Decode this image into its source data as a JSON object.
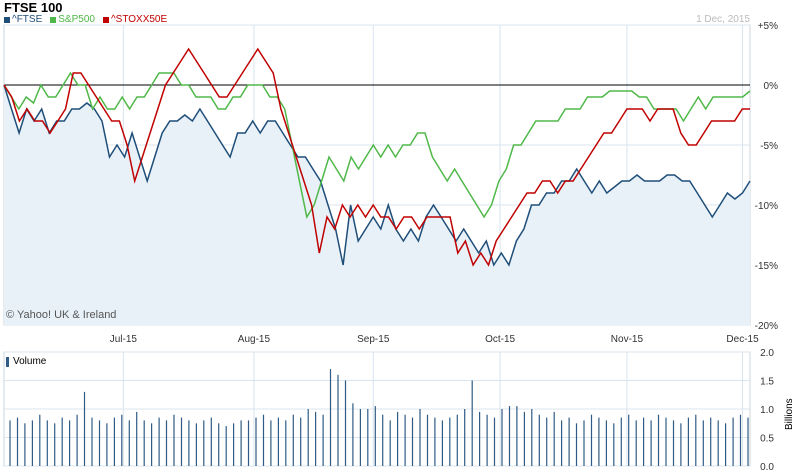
{
  "chart_title": "FTSE 100",
  "date_label": "1 Dec, 2015",
  "copyright": "© Yahoo! UK & Ireland",
  "colors": {
    "ftse": "#1f4e79",
    "sp500": "#4fb848",
    "stoxx": "#c00000",
    "volume": "#2f5b86",
    "area_fill": "#e8f1f8",
    "grid": "#d8e4ee"
  },
  "chart_data": [
    {
      "type": "line",
      "title": "FTSE 100",
      "x_ticks": [
        "Jul-15",
        "Aug-15",
        "Sep-15",
        "Oct-15",
        "Nov-15",
        "Dec-15"
      ],
      "y_ticks": [
        "+5%",
        "0%",
        "-5%",
        "-10%",
        "-15%",
        "-20%"
      ],
      "ylim": [
        -20,
        5
      ],
      "y_unit": "percent change",
      "series": [
        {
          "name": "^FTSE",
          "color": "#1f4e79",
          "fill": "area",
          "values": [
            0,
            -2,
            -4,
            -2,
            -3,
            -2,
            -4,
            -3,
            -3,
            -2,
            -2,
            -1.5,
            -2,
            -3,
            -6,
            -5,
            -6,
            -4,
            -6,
            -8,
            -6,
            -4,
            -3,
            -3,
            -2.5,
            -3,
            -2,
            -3,
            -4,
            -5,
            -6,
            -4,
            -4,
            -3,
            -4,
            -3,
            -3,
            -4,
            -5,
            -6,
            -6,
            -7,
            -8,
            -10,
            -12,
            -15,
            -10,
            -13,
            -12,
            -11,
            -12,
            -10,
            -12,
            -13,
            -12,
            -13,
            -11,
            -10,
            -11,
            -12,
            -13,
            -12,
            -13,
            -14,
            -13,
            -15,
            -14,
            -15,
            -13,
            -12,
            -10,
            -10,
            -9,
            -9,
            -8,
            -8,
            -7,
            -8,
            -9,
            -8,
            -9,
            -8.5,
            -8,
            -8,
            -7.5,
            -8,
            -8,
            -8,
            -7.5,
            -7.5,
            -8,
            -8,
            -9,
            -10,
            -11,
            -10,
            -9,
            -9.5,
            -9,
            -8
          ]
        },
        {
          "name": "S&P500",
          "color": "#4fb848",
          "fill": "none",
          "values": [
            0,
            -1,
            -2,
            -1,
            -1.5,
            0,
            -1,
            -1,
            0,
            1,
            0,
            0,
            -2,
            -1,
            -2,
            -2,
            -1,
            -2,
            -1,
            -1,
            0,
            1,
            1,
            1,
            0,
            0,
            -1,
            -1,
            -1,
            -2,
            -2,
            -1,
            -1,
            0,
            0,
            0,
            -1,
            -1,
            -2,
            -5,
            -8,
            -11,
            -10,
            -8,
            -6,
            -7,
            -8,
            -6,
            -7,
            -6,
            -5,
            -6,
            -5,
            -6,
            -5,
            -5,
            -4,
            -4,
            -6,
            -7,
            -8,
            -7,
            -8,
            -9,
            -10,
            -11,
            -10,
            -8,
            -7,
            -5,
            -5,
            -4,
            -3,
            -3,
            -3,
            -3,
            -2,
            -2,
            -2,
            -1,
            -1,
            -1,
            -0.5,
            -0.5,
            -0.5,
            -0.5,
            -1,
            -1,
            -2,
            -2,
            -2,
            -2,
            -3,
            -2,
            -1,
            -2,
            -1,
            -1,
            -1,
            -1,
            -1,
            -0.5
          ]
        },
        {
          "name": "^STOXX50E",
          "color": "#c00000",
          "fill": "none",
          "values": [
            0,
            -1,
            -3,
            -2,
            -3,
            -3,
            -4,
            -3,
            -2,
            1,
            1,
            0,
            -1,
            -2,
            -3,
            -3,
            -5,
            -8,
            -6,
            -4,
            -2,
            0,
            1,
            2,
            3,
            2,
            1,
            0,
            -1,
            -1,
            0,
            1,
            2,
            3,
            2,
            1,
            -2,
            -4,
            -6,
            -8,
            -10,
            -14,
            -11,
            -12,
            -10,
            -11,
            -10,
            -11,
            -10,
            -11,
            -11,
            -12,
            -11,
            -11,
            -12,
            -11,
            -11,
            -11,
            -11,
            -14,
            -13,
            -15,
            -14,
            -15,
            -13,
            -12,
            -11,
            -10,
            -9,
            -9,
            -8,
            -8,
            -9,
            -8,
            -8,
            -7,
            -6,
            -5,
            -4,
            -4,
            -3,
            -2,
            -2,
            -2,
            -3,
            -2,
            -2,
            -2,
            -4,
            -5,
            -5,
            -4,
            -3,
            -3,
            -3,
            -3,
            -2,
            -2
          ]
        }
      ]
    },
    {
      "type": "bar",
      "title": "Volume",
      "ylabel": "Billions",
      "y_ticks": [
        "2.0",
        "1.5",
        "1.0",
        "0.5",
        "0.0"
      ],
      "ylim": [
        0,
        2
      ],
      "series": [
        {
          "name": "Volume",
          "color": "#2f5b86",
          "values": [
            0.8,
            0.85,
            0.75,
            0.8,
            0.9,
            0.8,
            0.75,
            0.85,
            0.8,
            0.9,
            1.3,
            0.85,
            0.8,
            0.75,
            0.85,
            0.9,
            0.8,
            0.95,
            0.8,
            0.75,
            0.85,
            0.8,
            0.9,
            0.85,
            0.8,
            0.75,
            0.8,
            0.85,
            0.75,
            0.7,
            0.75,
            0.8,
            0.8,
            0.85,
            0.9,
            0.8,
            0.85,
            0.8,
            0.9,
            0.85,
            1.0,
            0.95,
            0.9,
            1.7,
            1.6,
            1.5,
            1.1,
            1.0,
            1.0,
            1.05,
            0.9,
            0.8,
            0.95,
            0.9,
            0.85,
            1.0,
            0.9,
            0.85,
            0.8,
            0.85,
            0.9,
            1.0,
            1.5,
            0.95,
            0.9,
            0.85,
            1.0,
            1.05,
            1.05,
            0.95,
            1.0,
            0.9,
            0.85,
            0.95,
            0.8,
            0.85,
            0.75,
            0.8,
            0.9,
            0.85,
            0.8,
            0.75,
            0.85,
            0.9,
            0.8,
            0.85,
            0.8,
            0.9,
            0.85,
            0.8,
            0.75,
            0.85,
            0.9,
            0.8,
            0.85,
            0.8,
            0.75,
            0.85,
            0.9,
            0.85
          ]
        }
      ]
    }
  ],
  "legend": [
    "^FTSE",
    "S&P500",
    "^STOXX50E"
  ],
  "volume_label": "Volume",
  "billions_label": "Billions"
}
